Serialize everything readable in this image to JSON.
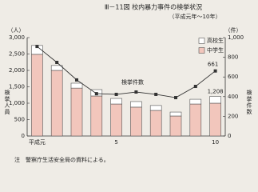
{
  "chart_data": {
    "type": "stacked-bar-line",
    "title": "Ⅲ－11図 校内暴力事件の検挙状況",
    "subtitle": "（平成元年～10年）",
    "y_unit": "（人）",
    "y2_unit": "（件）",
    "ylabel": "検挙人員",
    "y2label": "検挙件数",
    "line_label": "検挙件数",
    "note": "注　警察庁生活安全局の資料による。",
    "annotations": [
      "1,208"
    ],
    "categories": [
      "平成元",
      null,
      null,
      null,
      "5",
      null,
      null,
      null,
      null,
      "10"
    ],
    "series": [
      {
        "name": "中学生",
        "color": "#f2c6bc",
        "values": [
          2490,
          2000,
          1460,
          1220,
          975,
          880,
          780,
          610,
          975,
          1000
        ]
      },
      {
        "name": "高校生",
        "color": "#ffffff",
        "values": [
          270,
          150,
          150,
          195,
          170,
          170,
          150,
          120,
          145,
          208
        ]
      },
      {
        "name": "検挙件数",
        "color": "#333333",
        "axis": "y2",
        "values": [
          910,
          748,
          570,
          430,
          423,
          447,
          423,
          390,
          504,
          661
        ]
      }
    ],
    "legend_series": [
      1,
      0
    ],
    "ylim": [
      0,
      3000
    ],
    "yticks": [
      0,
      500,
      {
        "value": 1000,
        "label": "1,000"
      },
      {
        "value": 1500,
        "label": "1,500"
      },
      {
        "value": 2000,
        "label": "2,000"
      },
      {
        "value": 2500,
        "label": "2,500"
      },
      {
        "value": 3000,
        "label": "3,000"
      }
    ],
    "y2lim": [
      0,
      1000
    ],
    "y2ticks": [
      0,
      200,
      400,
      600,
      800,
      {
        "value": 1000,
        "label": "1,000"
      }
    ],
    "grid": false,
    "legend": "upper right"
  }
}
